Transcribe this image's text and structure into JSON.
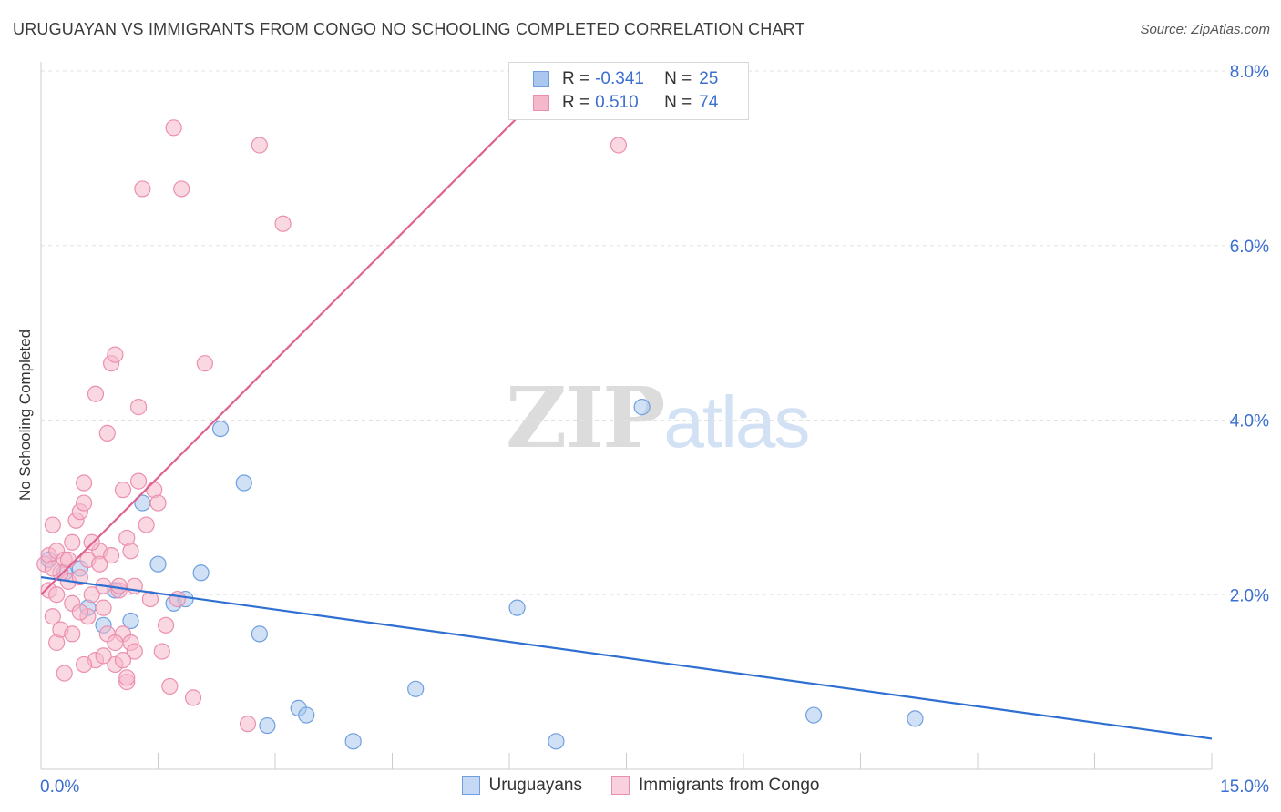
{
  "title": "URUGUAYAN VS IMMIGRANTS FROM CONGO NO SCHOOLING COMPLETED CORRELATION CHART",
  "source": "Source: ZipAtlas.com",
  "watermark": {
    "zip": "ZIP",
    "atlas": "atlas"
  },
  "legend": {
    "r_label": "R =",
    "n_label": "N =",
    "series1": {
      "r": "-0.341",
      "n": "25"
    },
    "series2": {
      "r": "0.510",
      "n": "74"
    }
  },
  "bottom_legend": {
    "series1": "Uruguayans",
    "series2": "Immigrants from Congo"
  },
  "colors": {
    "blue_fill": "#aac8ef",
    "blue_stroke": "#6f9fe0",
    "blue_line": "#2e6fd1",
    "pink_fill": "#f5b8cb",
    "pink_stroke": "#ec8fae",
    "pink_line": "#e0628e",
    "tick_text": "#3a6fd0",
    "grid": "#e3e3e3"
  },
  "chart_data": {
    "type": "scatter",
    "title": "URUGUAYAN VS IMMIGRANTS FROM CONGO NO SCHOOLING COMPLETED CORRELATION CHART",
    "xlabel": "",
    "ylabel": "No Schooling Completed",
    "xlim": [
      0,
      15
    ],
    "ylim": [
      0,
      8
    ],
    "x_tick_labels": [
      "0.0%",
      "15.0%"
    ],
    "y_ticks": [
      2,
      4,
      6,
      8
    ],
    "y_tick_labels": [
      "2.0%",
      "4.0%",
      "6.0%",
      "8.0%"
    ],
    "series": [
      {
        "name": "Uruguayans",
        "r": -0.341,
        "n": 25,
        "trend": {
          "x": [
            0,
            15
          ],
          "y": [
            2.2,
            0.35
          ]
        },
        "points": [
          [
            0.1,
            2.4
          ],
          [
            0.3,
            2.25
          ],
          [
            0.5,
            2.3
          ],
          [
            0.6,
            1.85
          ],
          [
            0.8,
            1.65
          ],
          [
            0.95,
            2.05
          ],
          [
            1.15,
            1.7
          ],
          [
            1.3,
            3.05
          ],
          [
            1.5,
            2.35
          ],
          [
            1.7,
            1.9
          ],
          [
            1.85,
            1.95
          ],
          [
            2.05,
            2.25
          ],
          [
            2.3,
            3.9
          ],
          [
            2.6,
            3.28
          ],
          [
            2.8,
            1.55
          ],
          [
            2.9,
            0.5
          ],
          [
            3.3,
            0.7
          ],
          [
            3.4,
            0.62
          ],
          [
            4.0,
            0.32
          ],
          [
            4.8,
            0.92
          ],
          [
            6.1,
            1.85
          ],
          [
            6.6,
            0.32
          ],
          [
            7.7,
            4.15
          ],
          [
            9.9,
            0.62
          ],
          [
            11.2,
            0.58
          ]
        ]
      },
      {
        "name": "Immigrants from Congo",
        "r": 0.51,
        "n": 74,
        "trend": {
          "x": [
            0,
            6.7
          ],
          "y": [
            2.0,
            8.0
          ]
        },
        "points": [
          [
            0.05,
            2.35
          ],
          [
            0.1,
            2.45
          ],
          [
            0.1,
            2.05
          ],
          [
            0.15,
            1.75
          ],
          [
            0.15,
            2.8
          ],
          [
            0.2,
            1.45
          ],
          [
            0.2,
            2.5
          ],
          [
            0.25,
            1.6
          ],
          [
            0.3,
            2.4
          ],
          [
            0.3,
            1.1
          ],
          [
            0.35,
            2.15
          ],
          [
            0.4,
            1.9
          ],
          [
            0.4,
            2.6
          ],
          [
            0.45,
            2.85
          ],
          [
            0.5,
            2.2
          ],
          [
            0.5,
            2.95
          ],
          [
            0.55,
            3.05
          ],
          [
            0.55,
            3.28
          ],
          [
            0.6,
            1.75
          ],
          [
            0.6,
            2.4
          ],
          [
            0.65,
            2.0
          ],
          [
            0.7,
            4.3
          ],
          [
            0.7,
            1.25
          ],
          [
            0.75,
            2.5
          ],
          [
            0.8,
            2.1
          ],
          [
            0.8,
            1.85
          ],
          [
            0.85,
            3.85
          ],
          [
            0.9,
            4.65
          ],
          [
            0.9,
            2.45
          ],
          [
            0.95,
            4.75
          ],
          [
            0.95,
            1.2
          ],
          [
            1.0,
            2.05
          ],
          [
            1.05,
            3.2
          ],
          [
            1.05,
            1.55
          ],
          [
            1.1,
            2.65
          ],
          [
            1.1,
            1.0
          ],
          [
            1.15,
            2.5
          ],
          [
            1.15,
            1.45
          ],
          [
            1.2,
            2.1
          ],
          [
            1.2,
            1.35
          ],
          [
            1.25,
            4.15
          ],
          [
            1.25,
            3.3
          ],
          [
            1.3,
            6.65
          ],
          [
            1.35,
            2.8
          ],
          [
            1.4,
            1.95
          ],
          [
            1.45,
            3.2
          ],
          [
            1.5,
            3.05
          ],
          [
            1.55,
            1.35
          ],
          [
            1.6,
            1.65
          ],
          [
            1.65,
            0.95
          ],
          [
            1.7,
            7.35
          ],
          [
            1.75,
            1.95
          ],
          [
            1.8,
            6.65
          ],
          [
            1.95,
            0.82
          ],
          [
            2.1,
            4.65
          ],
          [
            0.85,
            1.55
          ],
          [
            0.95,
            1.45
          ],
          [
            1.05,
            1.25
          ],
          [
            0.65,
            2.6
          ],
          [
            0.75,
            2.35
          ],
          [
            0.2,
            2.0
          ],
          [
            0.4,
            1.55
          ],
          [
            1.0,
            2.1
          ],
          [
            1.1,
            1.05
          ],
          [
            0.35,
            2.4
          ],
          [
            0.55,
            1.2
          ],
          [
            0.8,
            1.3
          ],
          [
            2.65,
            0.52
          ],
          [
            2.8,
            7.15
          ],
          [
            3.1,
            6.25
          ],
          [
            0.25,
            2.25
          ],
          [
            0.5,
            1.8
          ],
          [
            7.4,
            7.15
          ],
          [
            0.15,
            2.3
          ]
        ]
      }
    ]
  }
}
